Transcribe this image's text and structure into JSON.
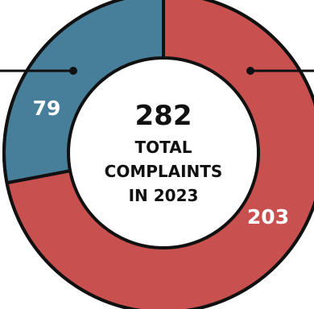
{
  "chart_data": {
    "type": "pie",
    "style": "donut",
    "categories": [
      "",
      ""
    ],
    "values": [
      203,
      79
    ],
    "colors": [
      "#c85150",
      "#477f9a"
    ],
    "data_labels": [
      "203",
      "79"
    ],
    "center_total": "282",
    "center_caption": [
      "TOTAL",
      "COMPLAINTS",
      "IN 2023"
    ],
    "outline_color": "#111111",
    "leader_lines": [
      "left",
      "right"
    ]
  }
}
